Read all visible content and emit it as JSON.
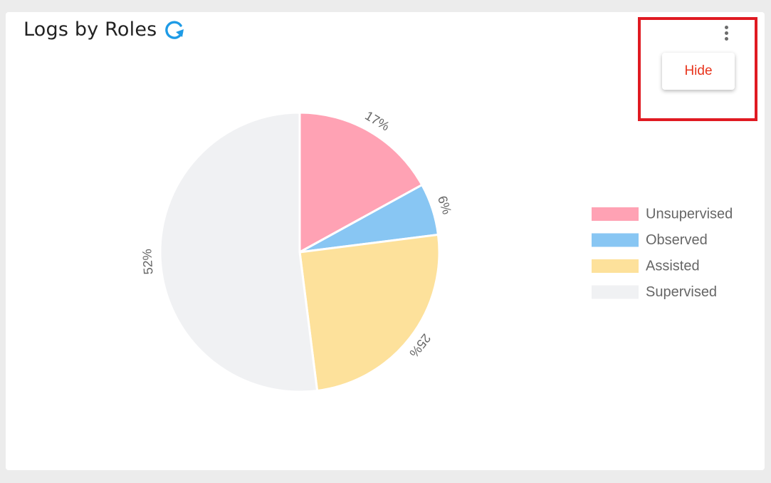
{
  "widget": {
    "title": "Logs by Roles",
    "refresh_icon": "refresh-icon",
    "menu_icon": "more-vertical-icon",
    "menu": {
      "hide_label": "Hide",
      "hide_color": "#e8341c"
    },
    "highlight_color": "#e01a22"
  },
  "chart_data": {
    "type": "pie",
    "title": "Logs by Roles",
    "legend_position": "right",
    "slices": [
      {
        "label": "Unsupervised",
        "value": 17,
        "display": "17%",
        "color": "#ffa2b4"
      },
      {
        "label": "Observed",
        "value": 6,
        "display": "6%",
        "color": "#88c6f3"
      },
      {
        "label": "Assisted",
        "value": 25,
        "display": "25%",
        "color": "#fde19b"
      },
      {
        "label": "Supervised",
        "value": 52,
        "display": "52%",
        "color": "#f0f1f3"
      }
    ]
  }
}
